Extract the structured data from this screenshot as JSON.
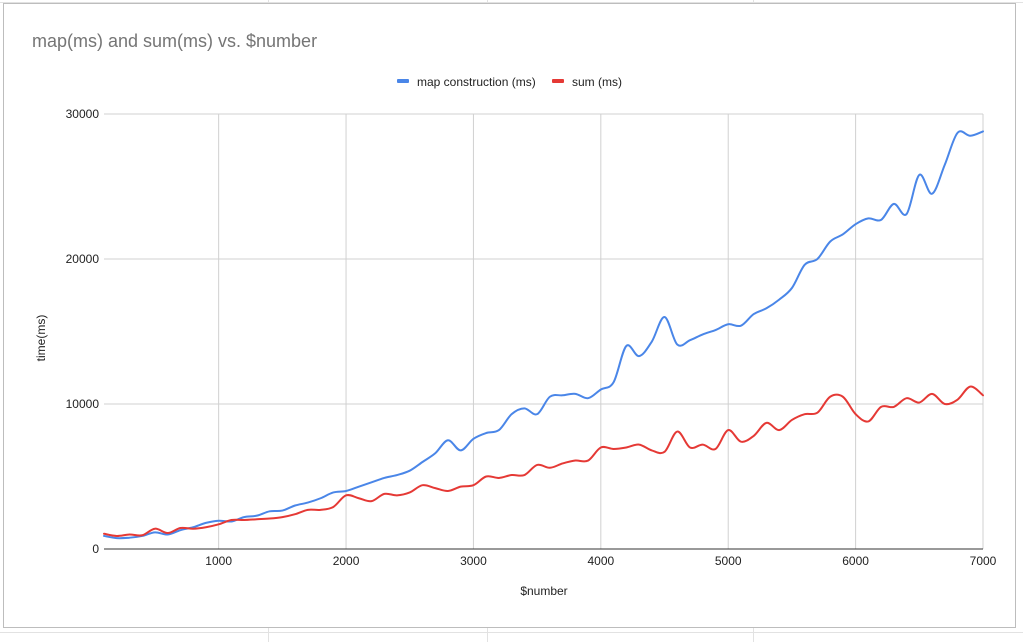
{
  "chart_data": {
    "type": "line",
    "title": "map(ms) and sum(ms) vs. $number",
    "xlabel": "$number",
    "ylabel": "time(ms)",
    "xlim": [
      100,
      7000
    ],
    "ylim": [
      0,
      30000
    ],
    "x_ticks": [
      1000,
      2000,
      3000,
      4000,
      5000,
      6000,
      7000
    ],
    "y_ticks": [
      0,
      10000,
      20000,
      30000
    ],
    "grid": true,
    "legend_position": "top-center",
    "x": [
      100,
      200,
      300,
      400,
      500,
      600,
      700,
      800,
      900,
      1000,
      1100,
      1200,
      1300,
      1400,
      1500,
      1600,
      1700,
      1800,
      1900,
      2000,
      2100,
      2200,
      2300,
      2400,
      2500,
      2600,
      2700,
      2800,
      2900,
      3000,
      3100,
      3200,
      3300,
      3400,
      3500,
      3600,
      3700,
      3800,
      3900,
      4000,
      4100,
      4200,
      4300,
      4400,
      4500,
      4600,
      4700,
      4800,
      4900,
      5000,
      5100,
      5200,
      5300,
      5400,
      5500,
      5600,
      5700,
      5800,
      5900,
      6000,
      6100,
      6200,
      6300,
      6400,
      6500,
      6600,
      6700,
      6800,
      6900,
      7000
    ],
    "series": [
      {
        "name": "map construction (ms)",
        "color": "#4a86e8",
        "values": [
          900,
          750,
          780,
          900,
          1150,
          1000,
          1300,
          1500,
          1800,
          1950,
          1900,
          2200,
          2300,
          2600,
          2650,
          3000,
          3200,
          3500,
          3900,
          4000,
          4300,
          4600,
          4900,
          5100,
          5400,
          6000,
          6600,
          7500,
          6800,
          7600,
          8000,
          8200,
          9300,
          9700,
          9300,
          10500,
          10600,
          10700,
          10400,
          11000,
          11500,
          14000,
          13300,
          14300,
          16000,
          14100,
          14400,
          14800,
          15100,
          15500,
          15400,
          16200,
          16600,
          17200,
          18000,
          19600,
          20000,
          21200,
          21700,
          22400,
          22800,
          22700,
          23800,
          23100,
          25800,
          24500,
          26500,
          28700,
          28500,
          28800
        ]
      },
      {
        "name": "sum (ms)",
        "color": "#e53935",
        "values": [
          1050,
          900,
          1000,
          950,
          1400,
          1100,
          1450,
          1400,
          1500,
          1700,
          2000,
          2000,
          2050,
          2100,
          2200,
          2400,
          2700,
          2700,
          2900,
          3700,
          3500,
          3300,
          3800,
          3700,
          3900,
          4400,
          4200,
          4000,
          4300,
          4400,
          5000,
          4900,
          5100,
          5100,
          5800,
          5600,
          5900,
          6100,
          6100,
          7000,
          6900,
          7000,
          7200,
          6800,
          6700,
          8100,
          7000,
          7200,
          6900,
          8200,
          7400,
          7800,
          8700,
          8200,
          8900,
          9300,
          9400,
          10500,
          10500,
          9300,
          8800,
          9800,
          9800,
          10400,
          10100,
          10700,
          10000,
          10300,
          11200,
          10600
        ]
      }
    ]
  }
}
